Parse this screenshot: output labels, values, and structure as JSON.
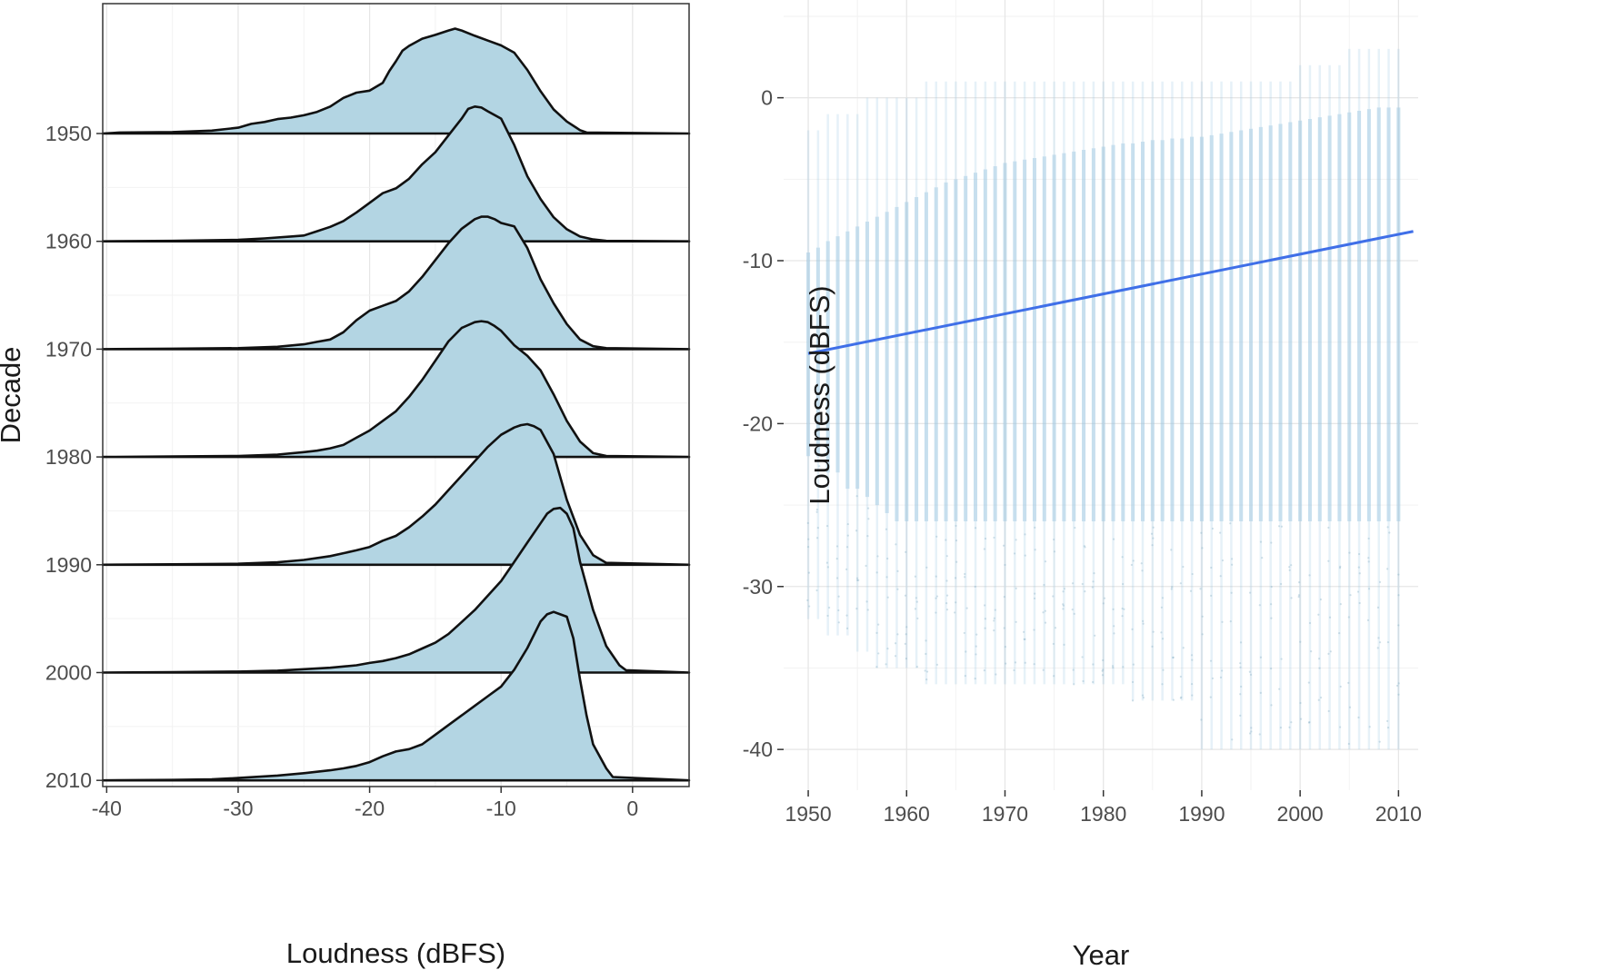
{
  "chart_data": [
    {
      "type": "ridgeline",
      "xlabel": "Loudness (dBFS)",
      "ylabel": "Decade",
      "xlim": [
        -40.3,
        4.3
      ],
      "x_ticks": [
        -40,
        -30,
        -20,
        -10,
        0
      ],
      "x_tick_labels": [
        "-40",
        "-30",
        "-20",
        "-10",
        "0"
      ],
      "categories": [
        "1950",
        "1960",
        "1970",
        "1980",
        "1990",
        "2000",
        "2010"
      ],
      "y_tick_labels": [
        "1950",
        "1960",
        "1970",
        "1980",
        "1990",
        "2000",
        "2010"
      ],
      "fill_color": "#b3d5e3",
      "line_color": "#111111",
      "panel_border": true,
      "grid": true,
      "series": [
        {
          "category": "1950",
          "x": [
            -40.3,
            -39,
            -35,
            -32,
            -30,
            -29,
            -28,
            -27,
            -26,
            -25,
            -24,
            -23,
            -22,
            -21,
            -20,
            -19,
            -18.5,
            -18,
            -17.5,
            -17,
            -16,
            -15,
            -14,
            -13.5,
            -13,
            -12,
            -11,
            -10,
            -9,
            -8,
            -7,
            -6,
            -5,
            -4,
            -3.5,
            4.3
          ],
          "y": [
            0,
            0.02,
            0.03,
            0.06,
            0.12,
            0.2,
            0.24,
            0.3,
            0.33,
            0.38,
            0.45,
            0.56,
            0.74,
            0.85,
            0.89,
            1.05,
            1.3,
            1.5,
            1.72,
            1.82,
            1.97,
            2.05,
            2.14,
            2.18,
            2.14,
            2.03,
            1.93,
            1.83,
            1.68,
            1.32,
            0.88,
            0.5,
            0.25,
            0.07,
            0.02,
            0
          ]
        },
        {
          "category": "1960",
          "x": [
            -40.3,
            -35,
            -30,
            -28,
            -26,
            -25,
            -24,
            -23,
            -22,
            -21,
            -20,
            -19,
            -18,
            -17,
            -16,
            -15,
            -14,
            -13,
            -12.5,
            -12,
            -11.5,
            -11,
            -10,
            -9,
            -8,
            -7,
            -6,
            -5,
            -4,
            -3,
            -2,
            4.3
          ],
          "y": [
            0,
            0.01,
            0.03,
            0.06,
            0.1,
            0.12,
            0.21,
            0.3,
            0.42,
            0.6,
            0.8,
            1.0,
            1.1,
            1.3,
            1.6,
            1.85,
            2.2,
            2.55,
            2.75,
            2.8,
            2.78,
            2.7,
            2.55,
            2.0,
            1.35,
            0.88,
            0.5,
            0.25,
            0.1,
            0.04,
            0.01,
            0
          ]
        },
        {
          "category": "1970",
          "x": [
            -40.3,
            -35,
            -30,
            -27,
            -25,
            -24,
            -23,
            -22,
            -21,
            -20,
            -19,
            -18,
            -17,
            -16,
            -15,
            -14,
            -13,
            -12,
            -11.5,
            -11,
            -10.5,
            -10,
            -9,
            -8,
            -7,
            -6,
            -5,
            -4,
            -3,
            -2,
            4.3
          ],
          "y": [
            0,
            0.01,
            0.02,
            0.05,
            0.1,
            0.15,
            0.2,
            0.35,
            0.6,
            0.8,
            0.9,
            1.0,
            1.2,
            1.5,
            1.85,
            2.2,
            2.5,
            2.7,
            2.75,
            2.75,
            2.7,
            2.62,
            2.55,
            2.1,
            1.45,
            0.95,
            0.52,
            0.2,
            0.06,
            0.02,
            0
          ]
        },
        {
          "category": "1980",
          "x": [
            -40.3,
            -35,
            -30,
            -27,
            -25,
            -24,
            -23,
            -22,
            -21,
            -20,
            -19,
            -18,
            -17,
            -16,
            -15,
            -14,
            -13,
            -12,
            -11.5,
            -11,
            -10.5,
            -10,
            -9,
            -8,
            -7,
            -6,
            -5,
            -4,
            -3,
            -2,
            4.3
          ],
          "y": [
            0,
            0.01,
            0.02,
            0.05,
            0.1,
            0.13,
            0.18,
            0.25,
            0.4,
            0.55,
            0.75,
            0.95,
            1.25,
            1.6,
            2.0,
            2.4,
            2.68,
            2.8,
            2.82,
            2.8,
            2.72,
            2.62,
            2.32,
            2.1,
            1.8,
            1.3,
            0.75,
            0.32,
            0.08,
            0.02,
            0
          ]
        },
        {
          "category": "1990",
          "x": [
            -40.3,
            -35,
            -30,
            -27,
            -25,
            -23,
            -22,
            -21,
            -20,
            -19,
            -18,
            -17,
            -16,
            -15,
            -14,
            -13,
            -12,
            -11,
            -10,
            -9,
            -8.5,
            -8,
            -7.5,
            -7,
            -6,
            -5,
            -4,
            -3,
            -2,
            4.3
          ],
          "y": [
            0,
            0.01,
            0.02,
            0.05,
            0.1,
            0.18,
            0.24,
            0.3,
            0.37,
            0.5,
            0.6,
            0.78,
            1.0,
            1.25,
            1.55,
            1.85,
            2.15,
            2.45,
            2.7,
            2.85,
            2.9,
            2.92,
            2.88,
            2.8,
            2.3,
            1.35,
            0.62,
            0.2,
            0.04,
            0
          ]
        },
        {
          "category": "2000",
          "x": [
            -40.3,
            -35,
            -30,
            -27,
            -25,
            -23,
            -21,
            -20,
            -19,
            -18,
            -17,
            -16,
            -15,
            -14,
            -13,
            -12,
            -11,
            -10,
            -9,
            -8,
            -7,
            -6.5,
            -6,
            -5.5,
            -5,
            -4.5,
            -4,
            -3,
            -2,
            -1,
            -0.5,
            4.3
          ],
          "y": [
            0,
            0.01,
            0.02,
            0.04,
            0.07,
            0.1,
            0.15,
            0.2,
            0.24,
            0.3,
            0.38,
            0.5,
            0.62,
            0.8,
            1.05,
            1.3,
            1.6,
            1.9,
            2.3,
            2.7,
            3.1,
            3.3,
            3.4,
            3.42,
            3.3,
            3.0,
            2.3,
            1.3,
            0.55,
            0.15,
            0.05,
            0
          ]
        },
        {
          "category": "2010",
          "x": [
            -40.3,
            -35,
            -32,
            -30,
            -27,
            -25,
            -23,
            -22,
            -21,
            -20,
            -19,
            -18,
            -17,
            -16,
            -15,
            -14,
            -13,
            -12,
            -11,
            -10,
            -9,
            -8,
            -7,
            -6.5,
            -6,
            -5.5,
            -5,
            -4.5,
            -4,
            -3.5,
            -3,
            -2,
            -1.5,
            4.3
          ],
          "y": [
            0,
            0.01,
            0.02,
            0.05,
            0.1,
            0.15,
            0.21,
            0.25,
            0.3,
            0.38,
            0.5,
            0.6,
            0.65,
            0.75,
            0.95,
            1.15,
            1.35,
            1.55,
            1.75,
            1.95,
            2.3,
            2.75,
            3.3,
            3.45,
            3.5,
            3.45,
            3.4,
            2.95,
            2.1,
            1.35,
            0.75,
            0.25,
            0.07,
            0
          ]
        }
      ]
    },
    {
      "type": "scatter",
      "xlabel": "Year",
      "ylabel": "Loudness (dBFS)",
      "xlim": [
        1947.5,
        2012
      ],
      "ylim": [
        -42.5,
        6
      ],
      "x_ticks": [
        1950,
        1960,
        1970,
        1980,
        1990,
        2000,
        2010
      ],
      "x_tick_labels": [
        "1950",
        "1960",
        "1970",
        "1980",
        "1990",
        "2000",
        "2010"
      ],
      "y_ticks": [
        0,
        -10,
        -20,
        -30,
        -40
      ],
      "y_tick_labels": [
        "0",
        "-10",
        "-20",
        "-30",
        "-40"
      ],
      "point_color": "#8fc0dd",
      "grid": true,
      "panel_border": false,
      "years": [
        1950,
        1951,
        1952,
        1953,
        1954,
        1955,
        1956,
        1957,
        1958,
        1959,
        1960,
        1961,
        1962,
        1963,
        1964,
        1965,
        1966,
        1967,
        1968,
        1969,
        1970,
        1971,
        1972,
        1973,
        1974,
        1975,
        1976,
        1977,
        1978,
        1979,
        1980,
        1981,
        1982,
        1983,
        1984,
        1985,
        1986,
        1987,
        1988,
        1989,
        1990,
        1991,
        1992,
        1993,
        1994,
        1995,
        1996,
        1997,
        1998,
        1999,
        2000,
        2001,
        2002,
        2003,
        2004,
        2005,
        2006,
        2007,
        2008,
        2009,
        2010
      ],
      "dense_band": {
        "top": [
          -9.5,
          -9.2,
          -8.8,
          -8.5,
          -8.2,
          -7.9,
          -7.6,
          -7.3,
          -7.0,
          -6.7,
          -6.4,
          -6.1,
          -5.8,
          -5.5,
          -5.2,
          -5.0,
          -4.8,
          -4.6,
          -4.4,
          -4.2,
          -4.0,
          -3.9,
          -3.8,
          -3.7,
          -3.6,
          -3.5,
          -3.4,
          -3.3,
          -3.2,
          -3.1,
          -3.0,
          -2.9,
          -2.8,
          -2.8,
          -2.7,
          -2.6,
          -2.6,
          -2.5,
          -2.5,
          -2.4,
          -2.4,
          -2.3,
          -2.2,
          -2.1,
          -2.0,
          -1.9,
          -1.8,
          -1.7,
          -1.6,
          -1.5,
          -1.4,
          -1.3,
          -1.2,
          -1.1,
          -1.0,
          -0.9,
          -0.8,
          -0.7,
          -0.6,
          -0.6,
          -0.6
        ],
        "bottom": [
          -22,
          -22,
          -23,
          -23,
          -24,
          -24,
          -24.5,
          -25,
          -25.5,
          -26,
          -26,
          -26,
          -26,
          -26,
          -26,
          -26,
          -26,
          -26,
          -26,
          -26,
          -26,
          -26,
          -26,
          -26,
          -26,
          -26,
          -26,
          -26,
          -26,
          -26,
          -26,
          -26,
          -26,
          -26,
          -26,
          -26,
          -26,
          -26,
          -26,
          -26,
          -26,
          -26,
          -26,
          -26,
          -26,
          -26,
          -26,
          -26,
          -26,
          -26,
          -26,
          -26,
          -26,
          -26,
          -26,
          -26,
          -26,
          -26,
          -26,
          -26,
          -26
        ]
      },
      "sparse_range": {
        "top": [
          -2,
          -2,
          -1,
          -1,
          -1,
          -1,
          0,
          0,
          0,
          0,
          0,
          0,
          1,
          1,
          1,
          1,
          1,
          1,
          1,
          1,
          1,
          1,
          1,
          1,
          1,
          1,
          1,
          1,
          1,
          1,
          1,
          1,
          1,
          1,
          1,
          1,
          1,
          1,
          1,
          1,
          1,
          1,
          1,
          1,
          1,
          1,
          1,
          1,
          1,
          1,
          2,
          2,
          2,
          2,
          2,
          3,
          3,
          3,
          3,
          3,
          3
        ],
        "bottom": [
          -32,
          -32,
          -33,
          -33,
          -33,
          -34,
          -34,
          -35,
          -35,
          -35,
          -35,
          -35,
          -36,
          -36,
          -36,
          -36,
          -36,
          -36,
          -36,
          -36,
          -36,
          -36,
          -36,
          -36,
          -36,
          -36,
          -36,
          -36,
          -36,
          -36,
          -36,
          -36,
          -36,
          -37,
          -37,
          -37,
          -37,
          -37,
          -37,
          -37,
          -40,
          -40,
          -40,
          -40,
          -40,
          -40,
          -40,
          -40,
          -40,
          -40,
          -40,
          -40,
          -40,
          -40,
          -40,
          -40,
          -40,
          -40,
          -40,
          -40,
          -40
        ]
      },
      "trend": {
        "x": [
          1950,
          2011.5
        ],
        "y": [
          -15.7,
          -8.2
        ],
        "color": "#3f6fe8"
      }
    }
  ]
}
